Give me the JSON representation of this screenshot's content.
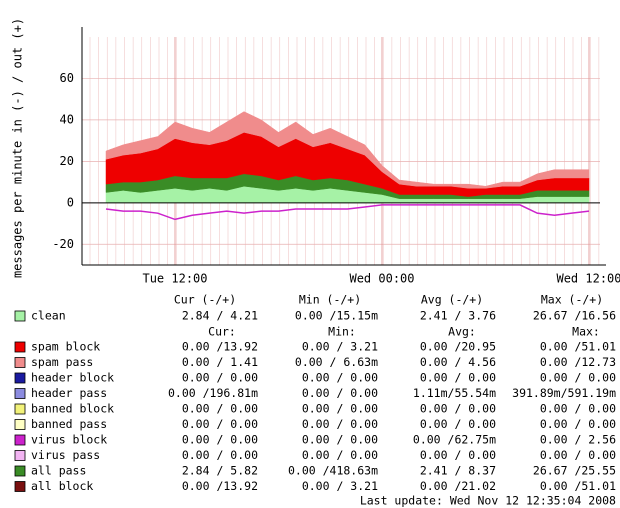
{
  "chart_data": {
    "type": "area",
    "ylabel": "messages per minute in (-) / out (+)",
    "categories": [
      null,
      null,
      null,
      null,
      "Tue 12:00",
      null,
      null,
      null,
      null,
      null,
      null,
      null,
      null,
      null,
      null,
      null,
      "Wed 00:00",
      null,
      null,
      null,
      null,
      null,
      null,
      null,
      null,
      null,
      null,
      null,
      "Wed 12:00"
    ],
    "ylim": [
      -30,
      80
    ],
    "yticks": [
      -20,
      0,
      20,
      40,
      60
    ],
    "grid": true,
    "headers": [
      "Cur (-/+)",
      "Min (-/+)",
      "Avg (-/+)",
      "Max (-/+)"
    ],
    "subheaders": [
      "Cur:",
      "Min:",
      "Avg:",
      "Max:"
    ],
    "series": [
      {
        "name": "clean",
        "color": "#a6f2a6",
        "stats": [
          "2.84 / 4.21",
          "0.00 /15.15m",
          "2.41 / 3.76",
          "26.67 /16.56"
        ],
        "values": [
          5,
          6,
          5,
          6,
          7,
          6,
          7,
          6,
          8,
          7,
          6,
          7,
          6,
          7,
          6,
          5,
          4,
          2,
          2,
          2,
          2,
          2,
          2,
          2,
          2,
          3,
          3,
          3,
          3
        ]
      },
      {
        "name": "spam block",
        "color": "#ee0000",
        "stats": [
          "0.00 /13.92",
          "0.00 / 3.21",
          "0.00 /20.95",
          "0.00 /51.01"
        ],
        "values": [
          12,
          13,
          14,
          15,
          18,
          17,
          16,
          18,
          20,
          19,
          16,
          18,
          16,
          17,
          15,
          14,
          8,
          5,
          4,
          4,
          4,
          4,
          3,
          4,
          4,
          5,
          6,
          6,
          6
        ]
      },
      {
        "name": "spam pass",
        "color": "#f08c8c",
        "stats": [
          "0.00 / 1.41",
          "0.00 / 6.63m",
          "0.00 / 4.56",
          "0.00 /12.73"
        ],
        "values": [
          4,
          5,
          6,
          6,
          8,
          7,
          6,
          9,
          10,
          8,
          7,
          8,
          6,
          7,
          6,
          5,
          3,
          2,
          2,
          1,
          1,
          2,
          1,
          2,
          2,
          3,
          4,
          4,
          4
        ]
      },
      {
        "name": "header block",
        "color": "#1a1aa0",
        "stats": [
          "0.00 / 0.00",
          "0.00 / 0.00",
          "0.00 / 0.00",
          "0.00 / 0.00"
        ]
      },
      {
        "name": "header pass",
        "color": "#8c8ce0",
        "stats": [
          "0.00 /196.81m",
          "0.00 / 0.00",
          "1.11m/55.54m",
          "391.89m/591.19m"
        ]
      },
      {
        "name": "banned block",
        "color": "#f2f27a",
        "stats": [
          "0.00 / 0.00",
          "0.00 / 0.00",
          "0.00 / 0.00",
          "0.00 / 0.00"
        ]
      },
      {
        "name": "banned pass",
        "color": "#ffffc4",
        "stats": [
          "0.00 / 0.00",
          "0.00 / 0.00",
          "0.00 / 0.00",
          "0.00 / 0.00"
        ]
      },
      {
        "name": "virus block",
        "color": "#cc22cc",
        "stats": [
          "0.00 / 0.00",
          "0.00 / 0.00",
          "0.00 /62.75m",
          "0.00 / 2.56"
        ],
        "values": [
          -3,
          -4,
          -4,
          -5,
          -8,
          -6,
          -5,
          -4,
          -5,
          -4,
          -4,
          -3,
          -3,
          -3,
          -3,
          -2,
          -1,
          -1,
          -1,
          -1,
          -1,
          -1,
          -1,
          -1,
          -1,
          -5,
          -6,
          -5,
          -4
        ]
      },
      {
        "name": "virus pass",
        "color": "#f2b4f2",
        "stats": [
          "0.00 / 0.00",
          "0.00 / 0.00",
          "0.00 / 0.00",
          "0.00 / 0.00"
        ]
      },
      {
        "name": "all pass",
        "color": "#3a8c26",
        "stats": [
          "2.84 / 5.82",
          "0.00 /418.63m",
          "2.41 / 8.37",
          "26.67 /25.55"
        ],
        "values": [
          4,
          4,
          5,
          5,
          6,
          6,
          5,
          6,
          6,
          6,
          5,
          6,
          5,
          5,
          5,
          4,
          3,
          2,
          2,
          2,
          2,
          1,
          2,
          2,
          2,
          3,
          3,
          3,
          3
        ]
      },
      {
        "name": "all block",
        "color": "#7a1010",
        "stats": [
          "0.00 /13.92",
          "0.00 / 3.21",
          "0.00 /21.02",
          "0.00 /51.01"
        ]
      }
    ],
    "footer": "Last update: Wed Nov 12 12:35:04 2008"
  }
}
